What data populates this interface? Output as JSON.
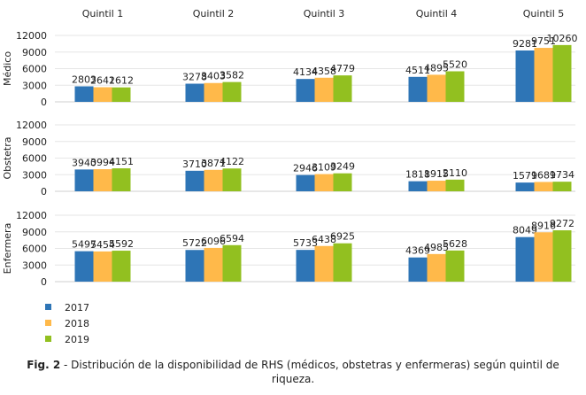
{
  "chart_data": {
    "type": "bar",
    "title": "",
    "categories": [
      "Quintil 1",
      "Quintil 2",
      "Quintil 3",
      "Quintil 4",
      "Quintil 5"
    ],
    "legend": [
      "2017",
      "2018",
      "2019"
    ],
    "colors": [
      "#2E75B6",
      "#FFB94A",
      "#92C020"
    ],
    "yticks": [
      0,
      3000,
      6000,
      9000,
      12000
    ],
    "ylim": [
      0,
      12000
    ],
    "panels": [
      {
        "ylabel": "Médico",
        "series": [
          {
            "name": "2017",
            "values": [
              2803,
              3278,
              4134,
              4511,
              9281
            ]
          },
          {
            "name": "2018",
            "values": [
              2641,
              3403,
              4358,
              4895,
              9751
            ]
          },
          {
            "name": "2019",
            "values": [
              2612,
              3582,
              4779,
              5520,
              10260
            ]
          }
        ]
      },
      {
        "ylabel": "Obstetra",
        "series": [
          {
            "name": "2017",
            "values": [
              3940,
              3710,
              2946,
              1818,
              1579
            ]
          },
          {
            "name": "2018",
            "values": [
              3994,
              3871,
              3109,
              1915,
              1689
            ]
          },
          {
            "name": "2019",
            "values": [
              4151,
              4122,
              3249,
              2110,
              1734
            ]
          }
        ]
      },
      {
        "ylabel": "Enfermera",
        "series": [
          {
            "name": "2017",
            "values": [
              5497,
              5722,
              5733,
              4369,
              8049
            ]
          },
          {
            "name": "2018",
            "values": [
              5454,
              6096,
              6438,
              4985,
              8916
            ]
          },
          {
            "name": "2019",
            "values": [
              5592,
              6594,
              6925,
              5628,
              9272
            ]
          }
        ]
      }
    ]
  },
  "caption": {
    "label": "Fig. 2",
    "text": " - Distribución de la disponibilidad de RHS (médicos, obstetras y enfermeras) según quintil de riqueza."
  }
}
